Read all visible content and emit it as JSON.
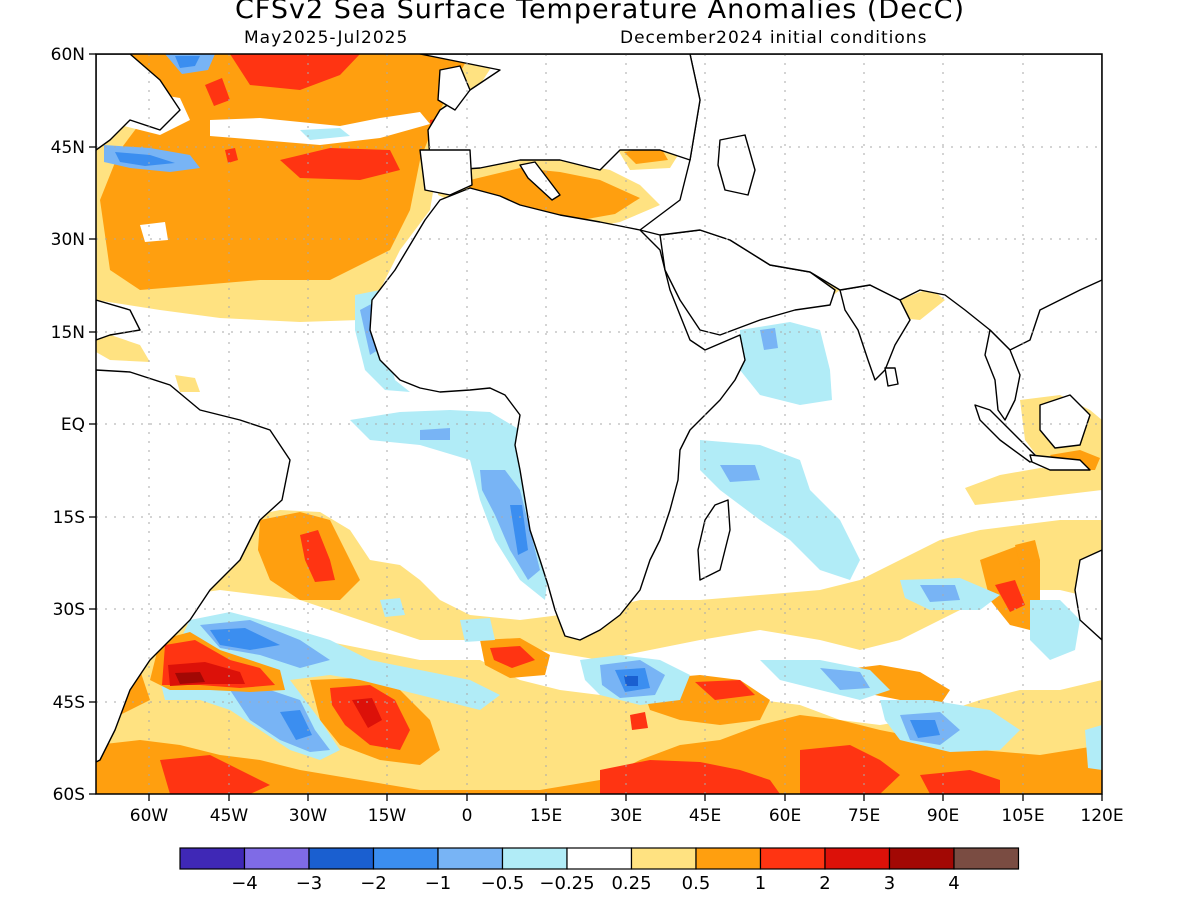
{
  "title": "CFSv2 Sea Surface Temperature Anomalies (DecC)",
  "subtitle_left": "May2025-Jul2025",
  "subtitle_right": "December2024 initial conditions",
  "map": {
    "lon_range": [
      -70,
      120
    ],
    "lat_range": [
      -60,
      60
    ],
    "lon_ticks": [
      "60W",
      "45W",
      "30W",
      "15W",
      "0",
      "15E",
      "30E",
      "45E",
      "60E",
      "75E",
      "90E",
      "105E",
      "120E"
    ],
    "lat_ticks": [
      "60N",
      "45N",
      "30N",
      "15N",
      "EQ",
      "15S",
      "30S",
      "45S",
      "60S"
    ],
    "grid": "dotted",
    "land_color": "#ffffff",
    "coastline_color": "#000000"
  },
  "colorbar": {
    "colors": [
      "#3f28b6",
      "#7f6be6",
      "#1a5fd0",
      "#3b8ef0",
      "#78b4f5",
      "#b1ecf7",
      "#ffffff",
      "#ffe281",
      "#ff9f0f",
      "#ff3412",
      "#dc1109",
      "#a20804",
      "#7a4c42"
    ],
    "labels": [
      "-4",
      "-3",
      "-2",
      "-1",
      "-0.5",
      "-0.25",
      "0.25",
      "0.5",
      "1",
      "2",
      "3",
      "4"
    ]
  }
}
